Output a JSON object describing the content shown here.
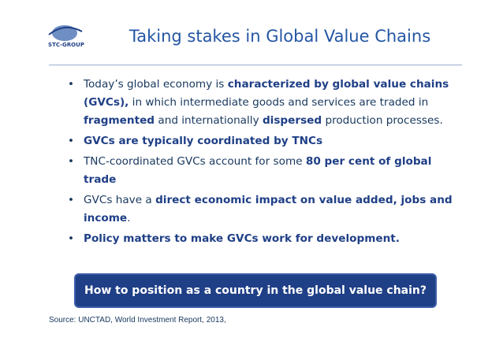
{
  "header": {
    "logo_text": "STC-GROUP",
    "title": "Taking stakes in Global Value Chains"
  },
  "bullets": [
    {
      "runs": [
        {
          "text": "Today’s global economy is "
        },
        {
          "text": "characterized by global value chains (GVCs),",
          "bold": true
        },
        {
          "text": " in which intermediate goods and services are traded in "
        },
        {
          "text": "fragmented",
          "bold": true
        },
        {
          "text": " and internationally "
        },
        {
          "text": "dispersed",
          "bold": true
        },
        {
          "text": " production processes."
        }
      ]
    },
    {
      "runs": [
        {
          "text": "GVCs are typically coordinated by TNCs",
          "bold": true
        }
      ]
    },
    {
      "runs": [
        {
          "text": "TNC-coordinated GVCs account for some "
        },
        {
          "text": "80 per cent of global trade",
          "bold": true
        }
      ]
    },
    {
      "runs": [
        {
          "text": "GVCs have a "
        },
        {
          "text": "direct economic impact on value added, jobs and income",
          "bold": true
        },
        {
          "text": "."
        }
      ]
    },
    {
      "runs": [
        {
          "text": "Policy matters to make GVCs work for development.",
          "bold": true
        }
      ]
    }
  ],
  "callout": "How to position as a country in the global value chain?",
  "source": "Source: UNCTAD, World Investment Report, 2013,"
}
